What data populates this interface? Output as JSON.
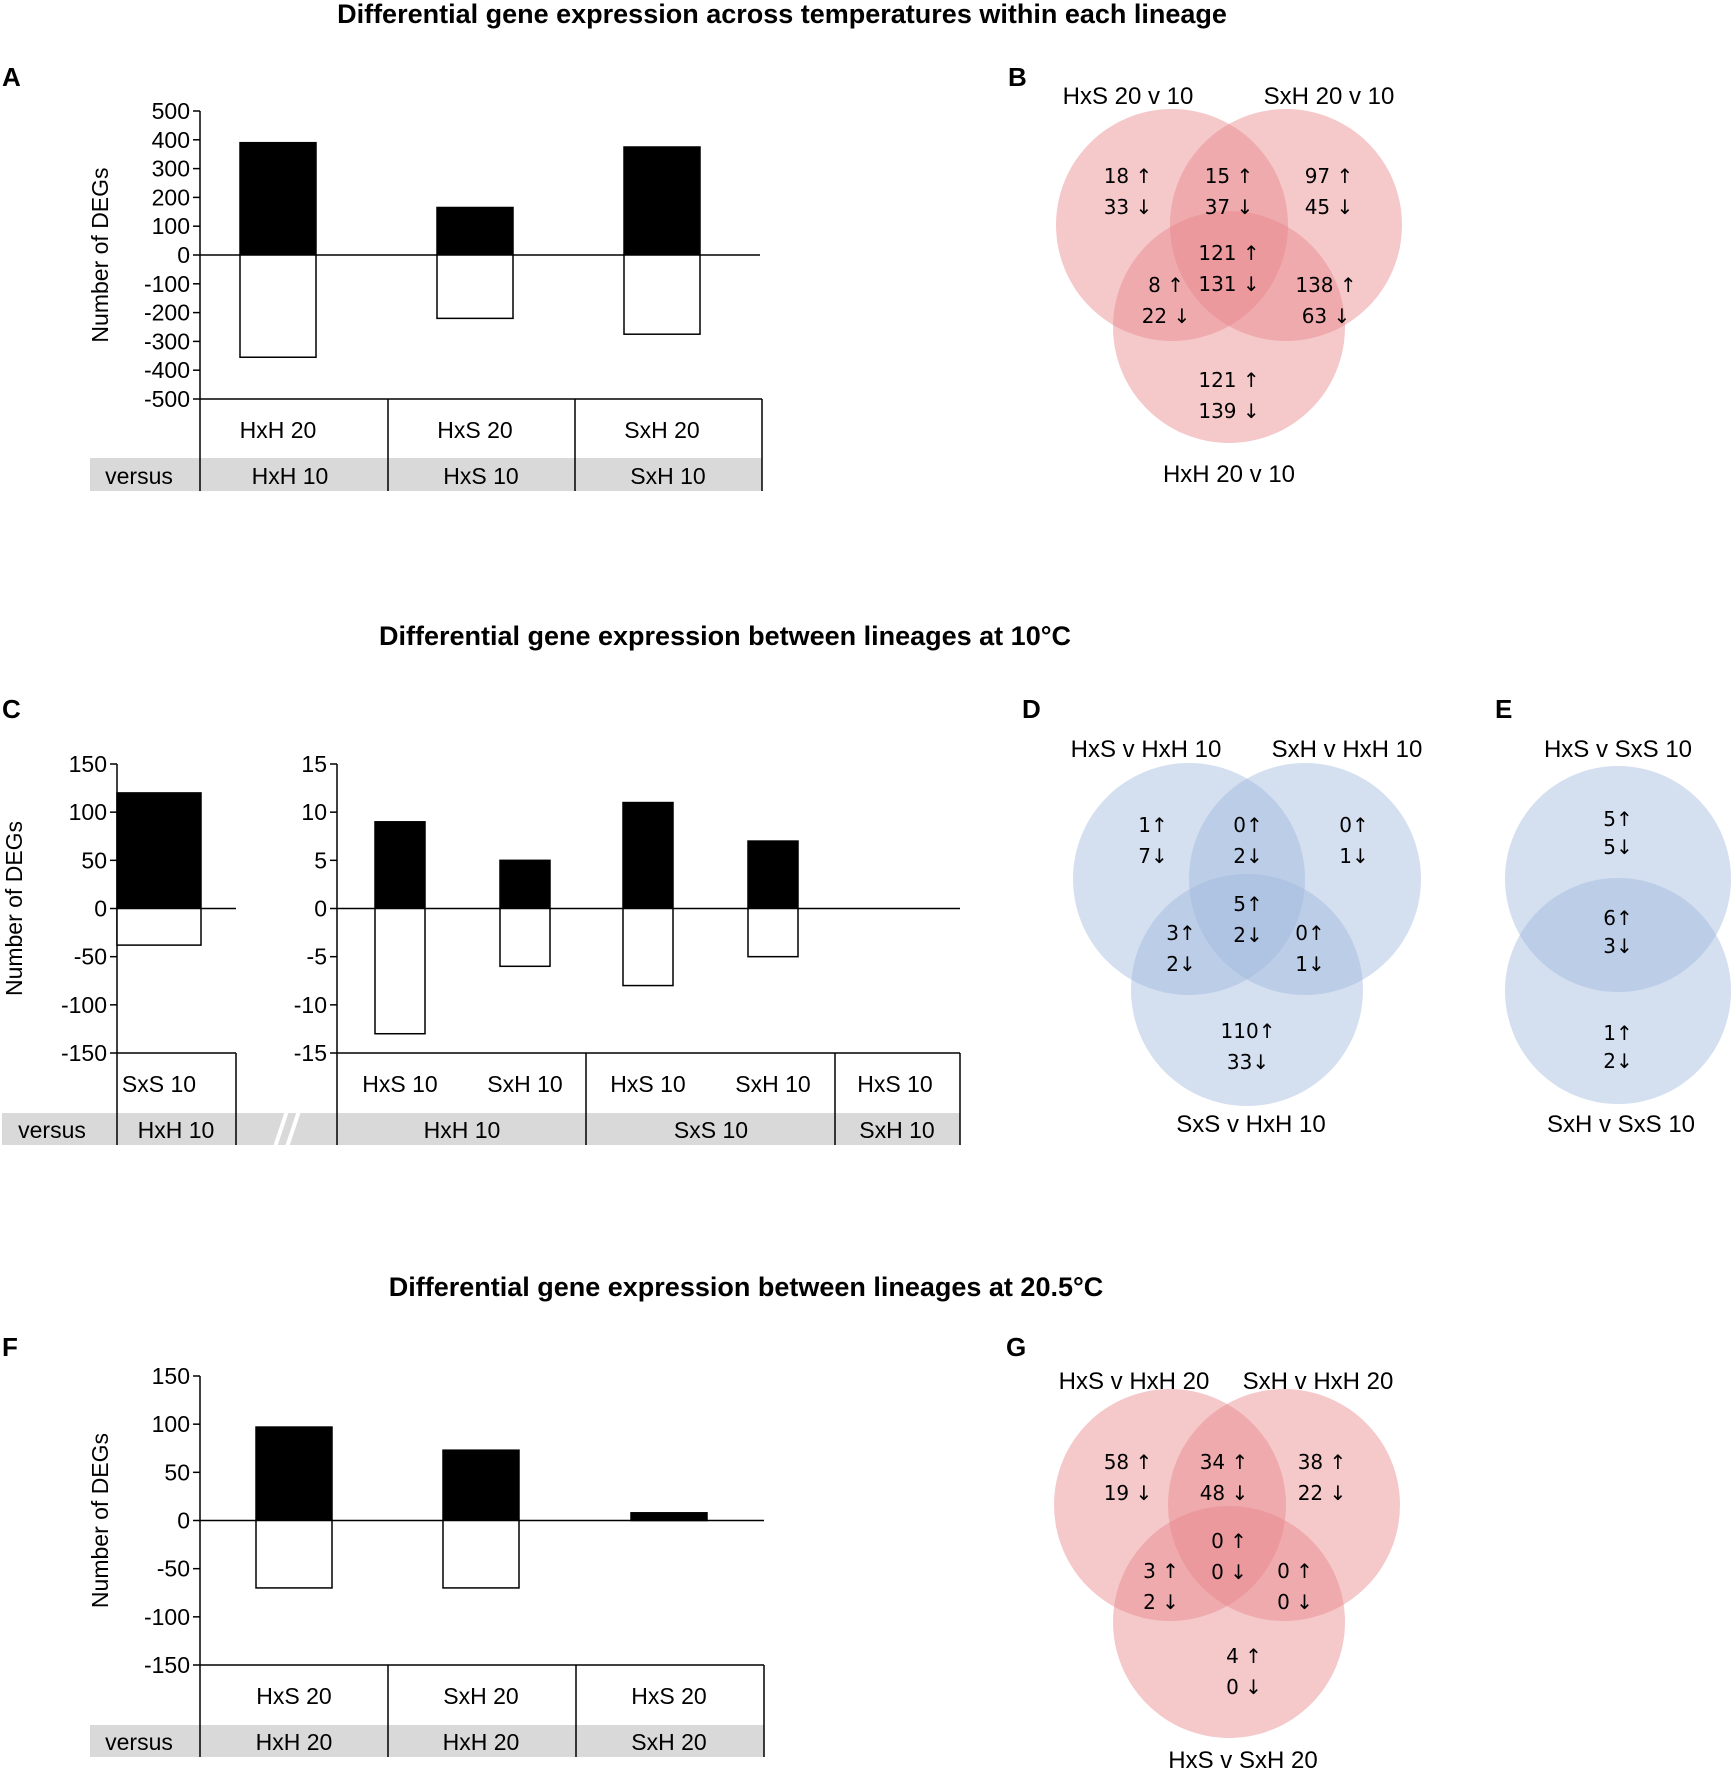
{
  "titles": {
    "top": "Differential gene expression across temperatures within each lineage",
    "middle": "Differential gene expression between lineages at 10°C",
    "bottom": "Differential gene expression between lineages at 20.5°C"
  },
  "panel_labels": {
    "A": "A",
    "B": "B",
    "C": "C",
    "D": "D",
    "E": "E",
    "F": "F",
    "G": "G"
  },
  "colors": {
    "up_bar": "#000000",
    "down_bar": "#ffffff",
    "red_venn": "#e8868a",
    "blue_venn": "#9fb8dd",
    "row_shade": "#d9d9d9"
  },
  "chart_data": [
    {
      "id": "A",
      "type": "bar",
      "ylabel": "Number of DEGs",
      "ylim": [
        -500,
        500
      ],
      "yticks": [
        "500",
        "400",
        "300",
        "200",
        "100",
        "0",
        "-100",
        "-200",
        "-300",
        "-400",
        "-500"
      ],
      "categories": [
        "HxH 20",
        "HxS 20",
        "SxH 20"
      ],
      "versus_label": "versus",
      "versus": [
        "HxH 10",
        "HxS 10",
        "SxH 10"
      ],
      "series": [
        {
          "name": "up",
          "values": [
            390,
            165,
            375
          ]
        },
        {
          "name": "down",
          "values": [
            -355,
            -220,
            -275
          ]
        }
      ]
    },
    {
      "id": "C-left",
      "type": "bar",
      "ylabel": "Number of DEGs",
      "ylim": [
        -150,
        150
      ],
      "yticks": [
        "150",
        "100",
        "50",
        "0",
        "-50",
        "-100",
        "-150"
      ],
      "categories": [
        "SxS 10"
      ],
      "versus_label": "versus",
      "versus": [
        "HxH 10"
      ],
      "series": [
        {
          "name": "up",
          "values": [
            120
          ]
        },
        {
          "name": "down",
          "values": [
            -38
          ]
        }
      ]
    },
    {
      "id": "C-right",
      "type": "bar",
      "ylim": [
        -15,
        15
      ],
      "yticks": [
        "15",
        "10",
        "5",
        "0",
        "-5",
        "-10",
        "-15"
      ],
      "categories": [
        "HxS 10",
        "SxH 10",
        "HxS 10",
        "SxH 10",
        "HxS 10"
      ],
      "versus": [
        "HxH 10",
        "SxS 10",
        "SxH 10"
      ],
      "series": [
        {
          "name": "up",
          "values": [
            9,
            5,
            11,
            7,
            0
          ]
        },
        {
          "name": "down",
          "values": [
            -13,
            -6,
            -8,
            -5,
            0
          ]
        }
      ]
    },
    {
      "id": "F",
      "type": "bar",
      "ylabel": "Number of DEGs",
      "ylim": [
        -150,
        150
      ],
      "yticks": [
        "150",
        "100",
        "50",
        "0",
        "-50",
        "-100",
        "-150"
      ],
      "categories": [
        "HxS 20",
        "SxH 20",
        "HxS 20"
      ],
      "versus_label": "versus",
      "versus": [
        "HxH 20",
        "HxH 20",
        "SxH 20"
      ],
      "series": [
        {
          "name": "up",
          "values": [
            97,
            73,
            8
          ]
        },
        {
          "name": "down",
          "values": [
            -70,
            -70,
            0
          ]
        }
      ]
    }
  ],
  "venn": {
    "B": {
      "sets": [
        "HxS 20 v 10",
        "SxH 20 v 10",
        "HxH 20 v 10"
      ],
      "regions": {
        "only1": [
          "18 ↑",
          "33 ↓"
        ],
        "only2": [
          "97 ↑",
          "45 ↓"
        ],
        "only3": [
          "121 ↑",
          "139 ↓"
        ],
        "r12": [
          "15 ↑",
          "37 ↓"
        ],
        "r13": [
          "8 ↑",
          "22 ↓"
        ],
        "r23": [
          "138 ↑",
          "63 ↓"
        ],
        "all": [
          "121 ↑",
          "131 ↓"
        ]
      }
    },
    "D": {
      "sets": [
        "HxS v HxH 10",
        "SxH v HxH 10",
        "SxS v HxH 10"
      ],
      "regions": {
        "only1": [
          "1↑",
          "7↓"
        ],
        "only2": [
          "0↑",
          "1↓"
        ],
        "only3": [
          "110↑",
          "33↓"
        ],
        "r12": [
          "0↑",
          "2↓"
        ],
        "r13": [
          "3↑",
          "2↓"
        ],
        "r23": [
          "0↑",
          "1↓"
        ],
        "all": [
          "5↑",
          "2↓"
        ]
      }
    },
    "E": {
      "sets": [
        "HxS v SxS 10",
        "SxH v SxS 10"
      ],
      "regions": {
        "only1": [
          "5↑",
          "5↓"
        ],
        "both": [
          "6↑",
          "3↓"
        ],
        "only2": [
          "1↑",
          "2↓"
        ]
      }
    },
    "G": {
      "sets": [
        "HxS v HxH 20",
        "SxH v HxH 20",
        "HxS v SxH 20"
      ],
      "regions": {
        "only1": [
          "58 ↑",
          "19 ↓"
        ],
        "only2": [
          "38 ↑",
          "22 ↓"
        ],
        "only3": [
          "4 ↑",
          "0 ↓"
        ],
        "r12": [
          "34 ↑",
          "48 ↓"
        ],
        "r13": [
          "3 ↑",
          "2 ↓"
        ],
        "r23": [
          "0 ↑",
          "0 ↓"
        ],
        "all": [
          "0 ↑",
          "0 ↓"
        ]
      }
    }
  }
}
